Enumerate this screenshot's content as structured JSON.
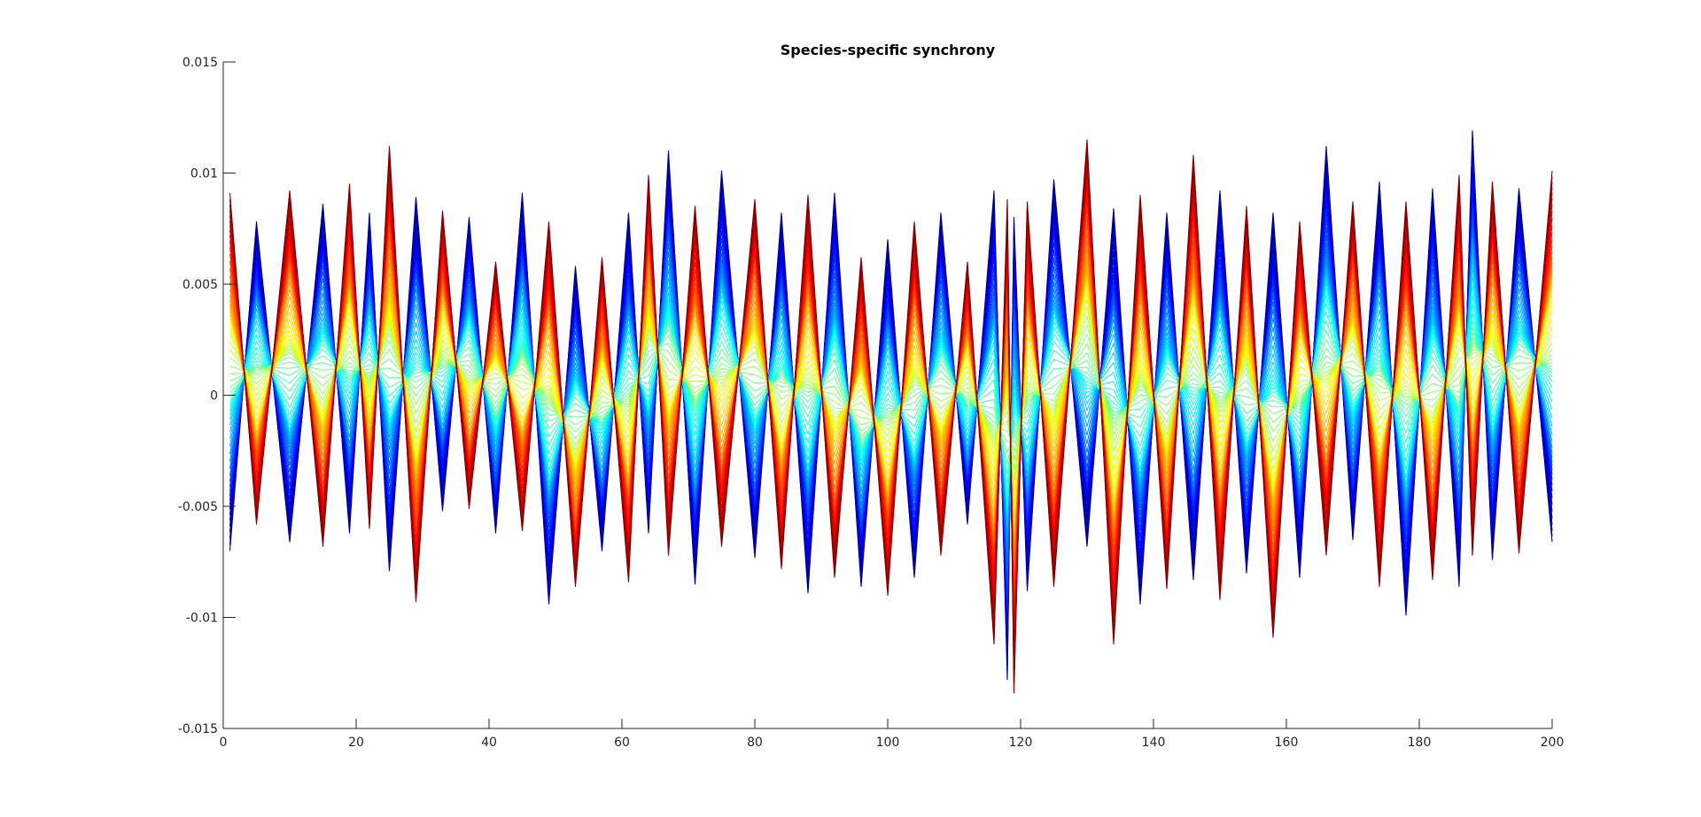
{
  "chart_data": {
    "type": "line",
    "title": "Species-specific synchrony",
    "xlabel": "",
    "ylabel": "",
    "xlim": [
      0,
      200
    ],
    "ylim": [
      -0.015,
      0.015
    ],
    "xticks": [
      0,
      20,
      40,
      60,
      80,
      100,
      120,
      140,
      160,
      180,
      200
    ],
    "xtick_labels": [
      "0",
      "20",
      "40",
      "60",
      "80",
      "100",
      "120",
      "140",
      "160",
      "180",
      "200"
    ],
    "yticks": [
      -0.015,
      -0.01,
      -0.005,
      0,
      0.005,
      0.01,
      0.015
    ],
    "ytick_labels": [
      "-0.015",
      "-0.01",
      "-0.005",
      "0",
      "0.005",
      "0.01",
      "0.015"
    ],
    "grid": false,
    "legend": "none",
    "colormap": "jet",
    "series_count": 64,
    "x": [
      1,
      5,
      10,
      15,
      19,
      22,
      25,
      29,
      33,
      37,
      41,
      45,
      49,
      53,
      57,
      61,
      64,
      67,
      71,
      75,
      80,
      84,
      88,
      92,
      96,
      100,
      104,
      108,
      112,
      116,
      118,
      119,
      121,
      125,
      130,
      134,
      138,
      142,
      146,
      150,
      154,
      158,
      162,
      166,
      170,
      174,
      178,
      182,
      186,
      188,
      191,
      195,
      200
    ],
    "envelope": {
      "upper": [
        0.0091,
        0.0078,
        0.0092,
        0.0086,
        0.0095,
        0.0082,
        0.0112,
        0.0089,
        0.0083,
        0.008,
        0.006,
        0.0091,
        0.0078,
        0.0058,
        0.0062,
        0.0082,
        0.0099,
        0.011,
        0.0085,
        0.0101,
        0.0088,
        0.0082,
        0.009,
        0.0091,
        0.0062,
        0.007,
        0.0078,
        0.0082,
        0.006,
        0.0092,
        0.0088,
        0.008,
        0.0087,
        0.0097,
        0.0115,
        0.0084,
        0.009,
        0.0082,
        0.0108,
        0.0092,
        0.0085,
        0.0082,
        0.0078,
        0.0112,
        0.0087,
        0.0096,
        0.0087,
        0.0093,
        0.0099,
        0.0119,
        0.0096,
        0.0093,
        0.0101
      ],
      "lower": [
        -0.007,
        -0.0058,
        -0.0066,
        -0.0068,
        -0.0062,
        -0.006,
        -0.0079,
        -0.0093,
        -0.0052,
        -0.0051,
        -0.0062,
        -0.0061,
        -0.0094,
        -0.0086,
        -0.007,
        -0.0084,
        -0.0062,
        -0.0072,
        -0.0085,
        -0.0068,
        -0.0073,
        -0.0078,
        -0.0089,
        -0.0082,
        -0.0086,
        -0.009,
        -0.0082,
        -0.0072,
        -0.0058,
        -0.0112,
        -0.0128,
        -0.0134,
        -0.0088,
        -0.0086,
        -0.0068,
        -0.0112,
        -0.0094,
        -0.0087,
        -0.0083,
        -0.0092,
        -0.008,
        -0.0109,
        -0.0082,
        -0.0072,
        -0.0065,
        -0.0086,
        -0.0099,
        -0.0083,
        -0.0086,
        -0.0072,
        -0.0074,
        -0.0071,
        -0.0066
      ]
    }
  }
}
